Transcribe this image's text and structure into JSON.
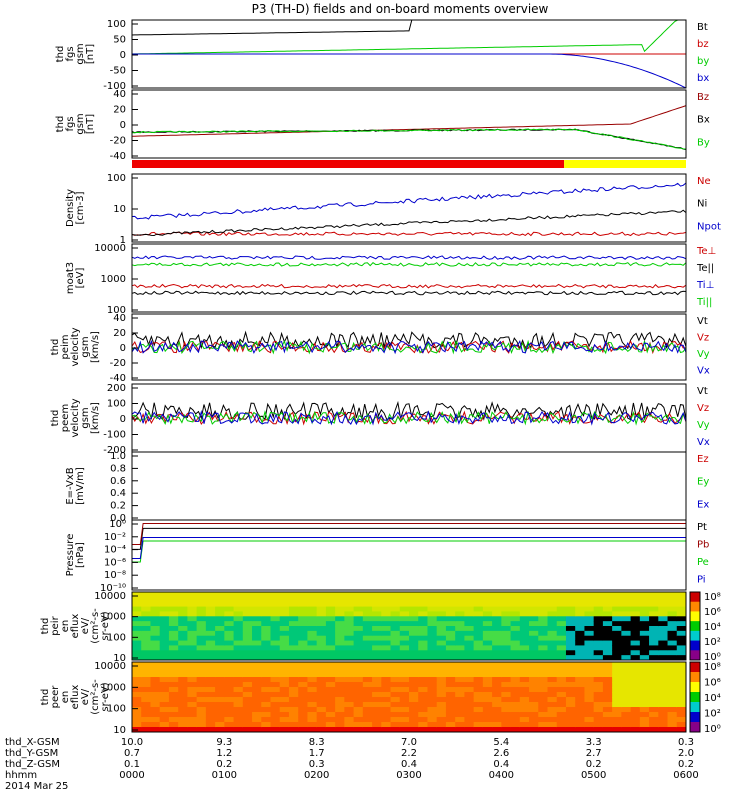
{
  "title": "P3 (TH-D) fields and on-board moments overview",
  "chart_data": {
    "type": "line",
    "x_ticks": [
      "0000",
      "0100",
      "0200",
      "0300",
      "0400",
      "0500",
      "0600"
    ],
    "x_rows": [
      {
        "label": "thd_X-GSM",
        "values": [
          "10.0",
          "9.3",
          "8.3",
          "7.0",
          "5.4",
          "3.3",
          "0.3"
        ]
      },
      {
        "label": "thd_Y-GSM",
        "values": [
          "0.7",
          "1.2",
          "1.7",
          "2.2",
          "2.6",
          "2.7",
          "2.0"
        ]
      },
      {
        "label": "thd_Z-GSM",
        "values": [
          "0.1",
          "0.2",
          "0.3",
          "0.4",
          "0.4",
          "0.2",
          "0.2"
        ]
      },
      {
        "label": "hhmm",
        "values": []
      }
    ],
    "date_label": "2014 Mar 25",
    "panels": [
      {
        "ylabel": [
          "thd",
          "fgs",
          "gsm",
          "[nT]"
        ],
        "ticks": [
          "100",
          "50",
          "0",
          "-50",
          "-100"
        ],
        "legend": [
          {
            "name": "Bt",
            "color": "#000000"
          },
          {
            "name": "bz",
            "color": "#cc0000"
          },
          {
            "name": "by",
            "color": "#00cc00"
          },
          {
            "name": "bx",
            "color": "#0000cc"
          }
        ],
        "ylim": [
          -100,
          100
        ]
      },
      {
        "ylabel": [
          "thd",
          "fgs",
          "gsm",
          "[nT]"
        ],
        "ticks": [
          "40",
          "20",
          "0",
          "-20",
          "-40"
        ],
        "legend": [
          {
            "name": "Bz",
            "color": "#990000"
          },
          {
            "name": "Bx",
            "color": "#000000"
          },
          {
            "name": "By",
            "color": "#00cc00"
          }
        ],
        "ylim": [
          -50,
          40
        ]
      },
      {
        "ylabel": [
          "Density",
          "[cm-3]"
        ],
        "ticks": [
          "100",
          "10",
          "1"
        ],
        "legend": [
          {
            "name": "Ne",
            "color": "#cc0000"
          },
          {
            "name": "Ni",
            "color": "#000000"
          },
          {
            "name": "Npot",
            "color": "#0000cc"
          }
        ],
        "log": true
      },
      {
        "ylabel": [
          "moat3",
          "[eV]"
        ],
        "ticks": [
          "10000",
          "1000",
          "100"
        ],
        "legend": [
          {
            "name": "Te⊥",
            "color": "#cc0000"
          },
          {
            "name": "Te||",
            "color": "#000000"
          },
          {
            "name": "Ti⊥",
            "color": "#0000cc"
          },
          {
            "name": "Ti||",
            "color": "#00cc00"
          }
        ],
        "log": true
      },
      {
        "ylabel": [
          "thd",
          "peim",
          "velocity",
          "gsm",
          "[km/s]"
        ],
        "ticks": [
          "40",
          "20",
          "0",
          "-20",
          "-40"
        ],
        "legend": [
          {
            "name": "Vt",
            "color": "#000000"
          },
          {
            "name": "Vz",
            "color": "#cc0000"
          },
          {
            "name": "Vy",
            "color": "#00cc00"
          },
          {
            "name": "Vx",
            "color": "#0000cc"
          }
        ],
        "ylim": [
          -40,
          40
        ]
      },
      {
        "ylabel": [
          "thd",
          "peem",
          "velocity",
          "gsm",
          "[km/s]"
        ],
        "ticks": [
          "200",
          "100",
          "0",
          "-100",
          "-200"
        ],
        "legend": [
          {
            "name": "Vt",
            "color": "#000000"
          },
          {
            "name": "Vz",
            "color": "#cc0000"
          },
          {
            "name": "Vy",
            "color": "#00cc00"
          },
          {
            "name": "Vx",
            "color": "#0000cc"
          }
        ],
        "ylim": [
          -200,
          200
        ]
      },
      {
        "ylabel": [
          "E=-VxB",
          "[mV/m]"
        ],
        "ticks": [
          "1.0",
          "0.8",
          "0.6",
          "0.4",
          "0.2",
          "0.0"
        ],
        "legend": [
          {
            "name": "Ez",
            "color": "#cc0000"
          },
          {
            "name": "Ey",
            "color": "#00cc00"
          },
          {
            "name": "Ex",
            "color": "#0000cc"
          }
        ],
        "ylim": [
          0,
          1
        ]
      },
      {
        "ylabel": [
          "Pressure",
          "[nPa]"
        ],
        "ticks": [
          "10⁰",
          "10⁻²",
          "10⁻⁴",
          "10⁻⁶",
          "10⁻⁸",
          "10⁻¹⁰"
        ],
        "legend": [
          {
            "name": "Pt",
            "color": "#000000"
          },
          {
            "name": "Pb",
            "color": "#990000"
          },
          {
            "name": "Pe",
            "color": "#00cc00"
          },
          {
            "name": "Pi",
            "color": "#0000cc"
          }
        ],
        "log": true
      },
      {
        "ylabel": [
          "thd",
          "peir",
          "en",
          "eflux",
          "eV/",
          "(cm²-s-",
          "sr-eV)"
        ],
        "ticks": [
          "10000",
          "1000",
          "100",
          "10"
        ],
        "spectrogram": true,
        "colorbar": [
          "10⁸",
          "10⁶",
          "10⁴",
          "10²",
          "10⁰"
        ]
      },
      {
        "ylabel": [
          "thd",
          "peer",
          "en",
          "eflux",
          "eV/",
          "(cm²-s-",
          "sr-eV)"
        ],
        "ticks": [
          "10000",
          "1000",
          "100",
          "10"
        ],
        "spectrogram": true,
        "colorbar": [
          "10⁸",
          "10⁶",
          "10⁴",
          "10²",
          "10⁰"
        ]
      }
    ]
  }
}
